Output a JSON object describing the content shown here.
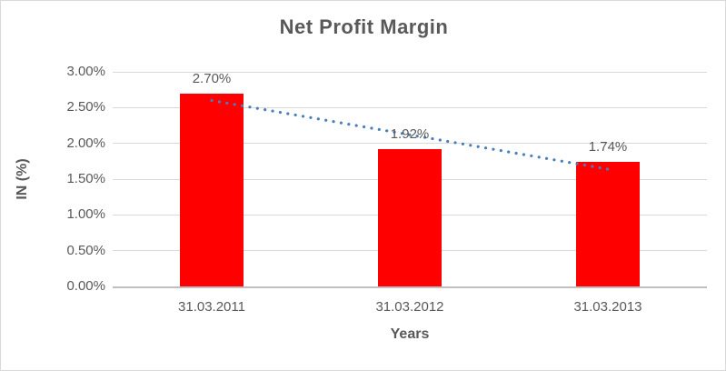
{
  "window": {
    "background_color": "#ffffff",
    "border_color": "#d9d9d9"
  },
  "chart_data": {
    "type": "bar",
    "title": "Net Profit Margin",
    "xlabel": "Years",
    "ylabel": "IN (%)",
    "categories": [
      "31.03.2011",
      "31.03.2012",
      "31.03.2013"
    ],
    "values": [
      2.7,
      1.92,
      1.74
    ],
    "data_labels": [
      "2.70%",
      "1.92%",
      "1.74%"
    ],
    "ylim": [
      0,
      3
    ],
    "yticks": [
      {
        "value": 0.0,
        "label": "0.00%"
      },
      {
        "value": 0.5,
        "label": "0.50%"
      },
      {
        "value": 1.0,
        "label": "1.00%"
      },
      {
        "value": 1.5,
        "label": "1.50%"
      },
      {
        "value": 2.0,
        "label": "2.00%"
      },
      {
        "value": 2.5,
        "label": "2.50%"
      },
      {
        "value": 3.0,
        "label": "3.00%"
      }
    ],
    "grid": true,
    "legend": "none",
    "bar_color": "#ff0000",
    "trendline": {
      "type": "linear",
      "style": "dotted",
      "color": "#4a7ebc"
    },
    "colors": {
      "gridline": "#d9d9d9",
      "axis_line": "#bfbfbf",
      "text": "#595959",
      "title": "#595959"
    }
  }
}
